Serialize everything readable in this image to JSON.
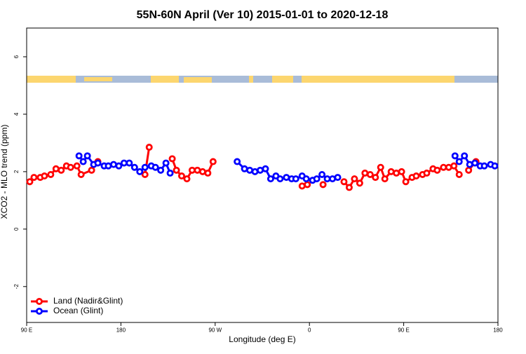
{
  "chart_data": {
    "type": "line",
    "title": "55N-60N April (Ver 10)   2015-01-01 to 2020-12-18",
    "xlabel": "Longitude (deg E)",
    "ylabel": "XCO2 - MLO trend (ppm)",
    "xlim": [
      90,
      540
    ],
    "ylim": [
      -3.25,
      7
    ],
    "xticks": [
      {
        "value": 90,
        "label": "90 E"
      },
      180,
      {
        "value": 270,
        "label": "90 W"
      },
      {
        "value": 360,
        "label": "0"
      },
      {
        "value": 450,
        "label": "90 E"
      },
      {
        "value": 540,
        "label": "180"
      }
    ],
    "yticks": [
      -2,
      0,
      2,
      4,
      6
    ],
    "legend": "bottom-left",
    "series": [
      {
        "name": "Land (Nadir&Glint)",
        "color": "#ff0000",
        "x": [
          93,
          97,
          103,
          107,
          113,
          118,
          123,
          128,
          132,
          138,
          142,
          152,
          158,
          null,
          203,
          207,
          null,
          229,
          233,
          238,
          243,
          248,
          253,
          258,
          263,
          268,
          null,
          353,
          358,
          null,
          373,
          null,
          393,
          398,
          403,
          408,
          413,
          418,
          423,
          428,
          432,
          438,
          443,
          448,
          452,
          458,
          462,
          468,
          472,
          478,
          482,
          488,
          493,
          498,
          503,
          null,
          512,
          519
        ],
        "values": [
          1.65,
          1.8,
          1.8,
          1.85,
          1.9,
          2.1,
          2.05,
          2.2,
          2.15,
          2.2,
          1.9,
          2.05,
          2.35,
          null,
          1.9,
          2.85,
          null,
          2.45,
          2.05,
          1.85,
          1.75,
          2.05,
          2.05,
          2.0,
          1.95,
          2.35,
          null,
          1.5,
          1.55,
          null,
          1.55,
          null,
          1.65,
          1.45,
          1.75,
          1.6,
          1.95,
          1.9,
          1.8,
          2.15,
          1.75,
          2.0,
          1.95,
          2.0,
          1.65,
          1.8,
          1.85,
          1.9,
          1.95,
          2.1,
          2.05,
          2.15,
          2.15,
          2.2,
          1.9,
          null,
          2.05,
          2.35
        ]
      },
      {
        "name": "Ocean (Glint)",
        "color": "#0000ff",
        "x": [
          140,
          144,
          148,
          154,
          158,
          164,
          168,
          173,
          178,
          183,
          188,
          193,
          198,
          203,
          209,
          213,
          218,
          223,
          227,
          null,
          291,
          298,
          303,
          308,
          313,
          318,
          323,
          328,
          332,
          338,
          343,
          347,
          353,
          357,
          363,
          367,
          372,
          377,
          382,
          387,
          null,
          499,
          503,
          508,
          513,
          518,
          523,
          527,
          533,
          537
        ],
        "values": [
          2.55,
          2.35,
          2.55,
          2.25,
          2.3,
          2.2,
          2.2,
          2.25,
          2.2,
          2.3,
          2.3,
          2.15,
          2.0,
          2.15,
          2.2,
          2.15,
          2.05,
          2.3,
          1.95,
          null,
          2.35,
          2.1,
          2.05,
          2.0,
          2.05,
          2.1,
          1.75,
          1.85,
          1.75,
          1.8,
          1.75,
          1.75,
          1.85,
          1.75,
          1.7,
          1.75,
          1.9,
          1.75,
          1.75,
          1.8,
          null,
          2.55,
          2.35,
          2.55,
          2.25,
          2.3,
          2.2,
          2.2,
          2.25,
          2.2
        ]
      }
    ]
  }
}
